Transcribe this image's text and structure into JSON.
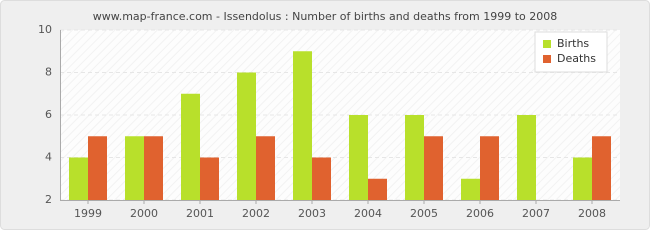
{
  "chart_data": {
    "type": "bar",
    "title": "www.map-france.com - Issendolus : Number of births and deaths from 1999 to 2008",
    "categories": [
      "1999",
      "2000",
      "2001",
      "2002",
      "2003",
      "2004",
      "2005",
      "2006",
      "2007",
      "2008"
    ],
    "series": [
      {
        "name": "Births",
        "color": "#b8e02b",
        "values": [
          4,
          5,
          7,
          8,
          9,
          6,
          6,
          3,
          6,
          4
        ]
      },
      {
        "name": "Deaths",
        "color": "#e0622f",
        "values": [
          5,
          5,
          4,
          5,
          4,
          3,
          5,
          5,
          2,
          5
        ]
      }
    ],
    "ylim": [
      2,
      10
    ],
    "yticks": [
      2,
      4,
      6,
      8,
      10
    ],
    "grid": true,
    "legend": "top-right"
  }
}
